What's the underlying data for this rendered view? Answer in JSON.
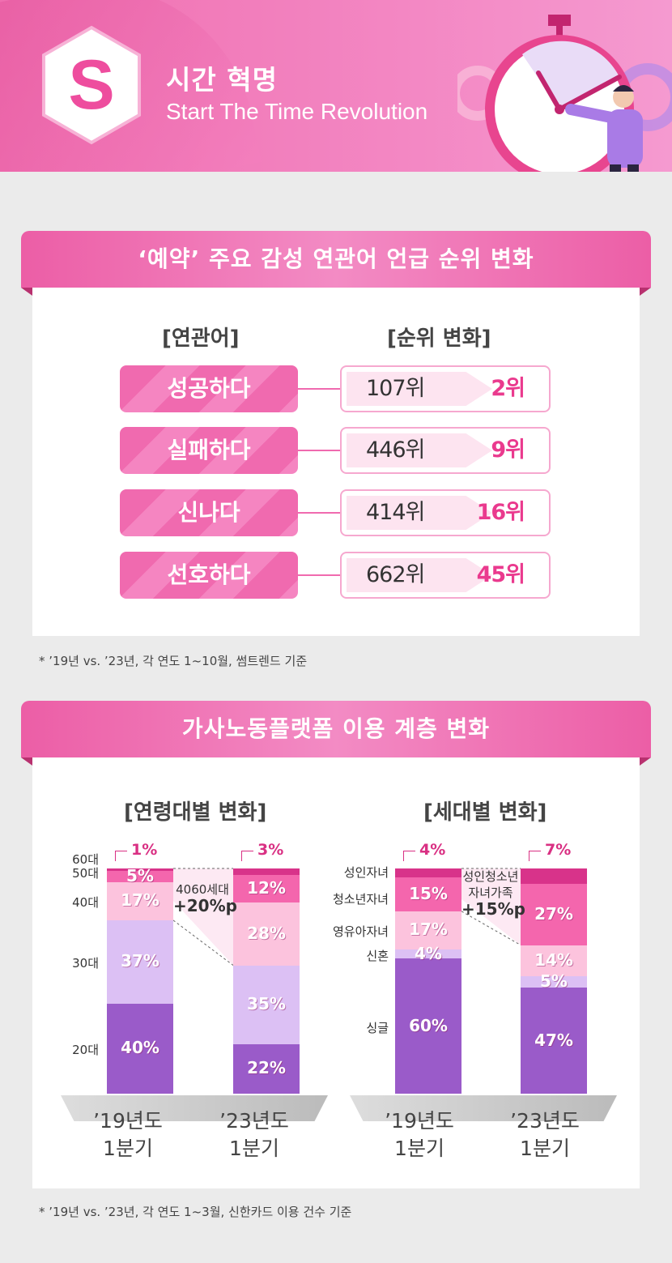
{
  "header": {
    "logo_letter": "S",
    "title": "시간 혁명",
    "subtitle": "Start The Time Revolution"
  },
  "section1": {
    "banner": "‘예약’ 주요 감성 연관어 언급 순위 변화",
    "col_word": "[연관어]",
    "col_rank": "[순위 변화]",
    "rows": [
      {
        "word": "성공하다",
        "old": "107위",
        "new": "2위"
      },
      {
        "word": "실패하다",
        "old": "446위",
        "new": "9위"
      },
      {
        "word": "신나다",
        "old": "414위",
        "new": "16위"
      },
      {
        "word": "선호하다",
        "old": "662위",
        "new": "45위"
      }
    ],
    "note": "*  ’19년 vs. ’23년, 각 연도 1~10월, 썸트렌드 기준"
  },
  "section2": {
    "banner": "가사노동플랫폼 이용 계층 변화",
    "note": "*  ’19년 vs. ’23년, 각 연도 1~3월, 신한카드 이용 건수 기준"
  },
  "colors": {
    "c20": "#9a5bc9",
    "c30": "#dcc0f4",
    "c40": "#fcc3dd",
    "c50": "#f466ad",
    "c60": "#d8338a",
    "accent": "#ea3a8e"
  },
  "chart_data": [
    {
      "type": "bar",
      "stacked": true,
      "title": "[연령대별 변화]",
      "categories": [
        "’19년도 1분기",
        "’23년도 1분기"
      ],
      "category_lines": [
        [
          "’19년도",
          "1분기"
        ],
        [
          "’23년도",
          "1분기"
        ]
      ],
      "series": [
        {
          "name": "20대",
          "values": [
            40,
            22
          ],
          "labels": [
            "40%",
            "22%"
          ]
        },
        {
          "name": "30대",
          "values": [
            37,
            35
          ],
          "labels": [
            "37%",
            "35%"
          ]
        },
        {
          "name": "40대",
          "values": [
            17,
            28
          ],
          "labels": [
            "17%",
            "28%"
          ]
        },
        {
          "name": "50대",
          "values": [
            5,
            12
          ],
          "labels": [
            "5%",
            "12%"
          ]
        },
        {
          "name": "60대",
          "values": [
            1,
            3
          ],
          "labels": [
            "1%",
            "3%"
          ]
        }
      ],
      "annotation_lines": [
        "4060세대",
        "+20%p"
      ]
    },
    {
      "type": "bar",
      "stacked": true,
      "title": "[세대별 변화]",
      "categories": [
        "’19년도 1분기",
        "’23년도 1분기"
      ],
      "category_lines": [
        [
          "’19년도",
          "1분기"
        ],
        [
          "’23년도",
          "1분기"
        ]
      ],
      "series": [
        {
          "name": "싱글",
          "values": [
            60,
            47
          ],
          "labels": [
            "60%",
            "47%"
          ]
        },
        {
          "name": "신혼",
          "values": [
            4,
            5
          ],
          "labels": [
            "4%",
            "5%"
          ]
        },
        {
          "name": "영유아자녀",
          "values": [
            17,
            14
          ],
          "labels": [
            "17%",
            "14%"
          ]
        },
        {
          "name": "청소년자녀",
          "values": [
            15,
            27
          ],
          "labels": [
            "15%",
            "27%"
          ]
        },
        {
          "name": "성인자녀",
          "values": [
            4,
            7
          ],
          "labels": [
            "4%",
            "7%"
          ]
        }
      ],
      "annotation_lines": [
        "성인청소년",
        "자녀가족",
        "+15%p"
      ]
    }
  ]
}
